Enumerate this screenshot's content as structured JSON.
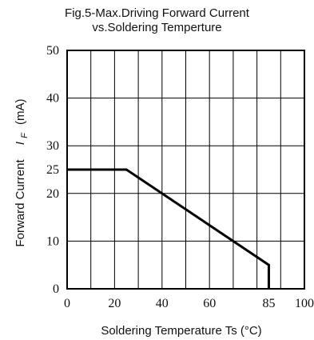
{
  "chart_data": {
    "type": "line",
    "title": "Fig.5-Max.Driving Forward Current",
    "subtitle": "vs.Soldering Temperture",
    "xlabel": "Soldering Temperature Ts (°C)",
    "ylabel": "Forward Current",
    "ylabel_symbol": "I",
    "ylabel_subscript": "F",
    "ylabel_unit": "(mA)",
    "xlim": [
      0,
      100
    ],
    "ylim": [
      0,
      50
    ],
    "grid": true,
    "grid_x": [
      0,
      10,
      20,
      30,
      40,
      50,
      60,
      70,
      80,
      90,
      100
    ],
    "grid_y": [
      0,
      10,
      20,
      30,
      40,
      50
    ],
    "x_ticks": [
      {
        "value": 0,
        "label": "0"
      },
      {
        "value": 20,
        "label": "20"
      },
      {
        "value": 40,
        "label": "40"
      },
      {
        "value": 60,
        "label": "60"
      },
      {
        "value": 85,
        "label": "85"
      },
      {
        "value": 100,
        "label": "100"
      }
    ],
    "y_ticks": [
      {
        "value": 0,
        "label": "0"
      },
      {
        "value": 10,
        "label": "10"
      },
      {
        "value": 20,
        "label": "20"
      },
      {
        "value": 25,
        "label": "25"
      },
      {
        "value": 30,
        "label": "30"
      },
      {
        "value": 40,
        "label": "40"
      },
      {
        "value": 50,
        "label": "50"
      }
    ],
    "series": [
      {
        "x": [
          0,
          25,
          85,
          85
        ],
        "y": [
          25,
          25,
          5,
          0
        ],
        "color": "#000000"
      }
    ]
  }
}
